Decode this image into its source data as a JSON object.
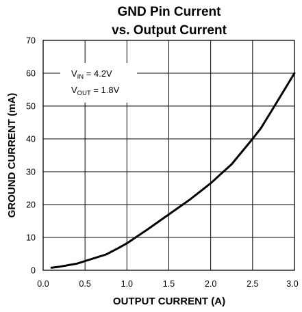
{
  "chart_data": {
    "type": "line",
    "title_line1": "GND Pin Current",
    "title_line2": "vs. Output Current",
    "xlabel": "OUTPUT CURRENT (A)",
    "ylabel": "GROUND CURRENT (mA)",
    "xlim": [
      0.0,
      3.0
    ],
    "ylim": [
      0,
      70
    ],
    "x_ticks": [
      "0.0",
      "0.5",
      "1.0",
      "1.5",
      "2.0",
      "2.5",
      "3.0"
    ],
    "y_ticks": [
      "0",
      "10",
      "20",
      "30",
      "40",
      "50",
      "60",
      "70"
    ],
    "grid": true,
    "series": [
      {
        "x": [
          0.1,
          0.2,
          0.4,
          0.6,
          0.75,
          0.9,
          1.0,
          1.25,
          1.5,
          1.75,
          2.0,
          2.25,
          2.5,
          2.6,
          2.75,
          3.0
        ],
        "y": [
          0.8,
          1.1,
          2.0,
          3.6,
          4.8,
          6.8,
          8.2,
          12.5,
          17.0,
          21.5,
          26.5,
          32.3,
          40.0,
          43.3,
          49.5,
          60.0
        ]
      }
    ],
    "annotation": {
      "vin_prefix": "V",
      "vin_sub": "IN",
      "vin_value": " = 4.2V",
      "vout_prefix": "V",
      "vout_sub": "OUT",
      "vout_value": " = 1.8V"
    }
  }
}
